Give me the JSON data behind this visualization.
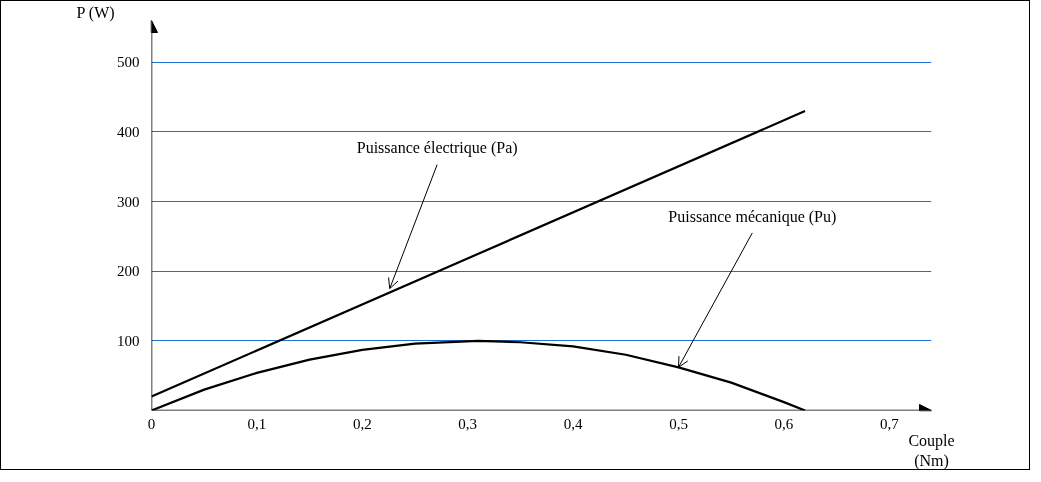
{
  "chart_data": {
    "type": "line",
    "xlabel": "Couple\n(Nm)",
    "ylabel": "P (W)",
    "xlim": [
      0,
      0.74
    ],
    "ylim": [
      0,
      560
    ],
    "xticks": [
      {
        "value": 0,
        "label": "0"
      },
      {
        "value": 0.1,
        "label": "0,1"
      },
      {
        "value": 0.2,
        "label": "0,2"
      },
      {
        "value": 0.3,
        "label": "0,3"
      },
      {
        "value": 0.4,
        "label": "0,4"
      },
      {
        "value": 0.5,
        "label": "0,5"
      },
      {
        "value": 0.6,
        "label": "0,6"
      },
      {
        "value": 0.7,
        "label": "0,7"
      }
    ],
    "yticks": [
      100,
      200,
      300,
      400,
      500
    ],
    "grid": "y",
    "marker": "none",
    "line_style": "solid",
    "series": [
      {
        "color": "#000000",
        "x": [
          0,
          0.62
        ],
        "values": [
          20,
          430
        ]
      },
      {
        "color": "#000000",
        "x": [
          0,
          0.05,
          0.1,
          0.15,
          0.2,
          0.25,
          0.31,
          0.35,
          0.4,
          0.45,
          0.5,
          0.55,
          0.6,
          0.62
        ],
        "values": [
          0,
          30,
          54,
          73,
          87,
          96,
          100,
          98,
          92,
          80,
          62,
          40,
          12,
          0
        ]
      }
    ],
    "annotations": [
      {
        "text": "Puissance électrique (Pa)",
        "x": 0.226,
        "y": 175
      },
      {
        "text": "Puissance mécanique (Pu)",
        "x": 0.5,
        "y": 62
      }
    ]
  }
}
